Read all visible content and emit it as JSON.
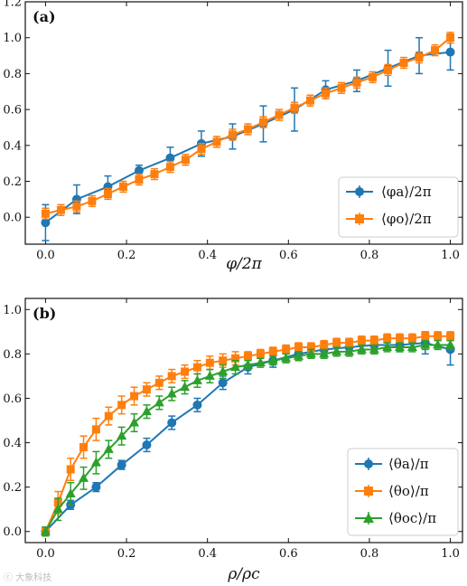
{
  "watermark": "ⓒ 大象科技",
  "chart_data": [
    {
      "type": "line",
      "panel_label": "(a)",
      "xlabel": "φ/2π",
      "ylabel": "",
      "xlim": [
        -0.05,
        1.03
      ],
      "ylim": [
        -0.15,
        1.2
      ],
      "xticks": [
        "0.0",
        "0.2",
        "0.4",
        "0.6",
        "0.8",
        "1.0"
      ],
      "yticks": [
        "0.0",
        "0.2",
        "0.4",
        "0.6",
        "0.8",
        "1.0",
        "1.2"
      ],
      "grid": false,
      "legend_position": "lower-right",
      "series": [
        {
          "name": "⟨φa⟩/2π",
          "color": "#1f77b4",
          "marker": "circle",
          "x": [
            0.0,
            0.077,
            0.154,
            0.231,
            0.308,
            0.385,
            0.462,
            0.538,
            0.615,
            0.692,
            0.769,
            0.846,
            0.923,
            1.0
          ],
          "y": [
            -0.03,
            0.1,
            0.17,
            0.26,
            0.33,
            0.41,
            0.45,
            0.52,
            0.6,
            0.71,
            0.76,
            0.83,
            0.9,
            0.92
          ],
          "err": [
            0.1,
            0.08,
            0.06,
            0.03,
            0.06,
            0.07,
            0.07,
            0.1,
            0.12,
            0.05,
            0.06,
            0.1,
            0.1,
            0.1
          ]
        },
        {
          "name": "⟨φo⟩/2π",
          "color": "#ff7f0e",
          "marker": "square",
          "x": [
            0.0,
            0.038,
            0.077,
            0.115,
            0.154,
            0.192,
            0.231,
            0.269,
            0.308,
            0.346,
            0.385,
            0.423,
            0.462,
            0.5,
            0.538,
            0.577,
            0.615,
            0.654,
            0.692,
            0.731,
            0.769,
            0.808,
            0.846,
            0.885,
            0.923,
            0.962,
            1.0
          ],
          "y": [
            0.02,
            0.04,
            0.06,
            0.09,
            0.13,
            0.17,
            0.21,
            0.24,
            0.28,
            0.32,
            0.38,
            0.42,
            0.46,
            0.49,
            0.53,
            0.57,
            0.61,
            0.65,
            0.69,
            0.72,
            0.75,
            0.78,
            0.82,
            0.86,
            0.89,
            0.93,
            1.0
          ],
          "err": [
            0.03,
            0.03,
            0.03,
            0.03,
            0.03,
            0.03,
            0.03,
            0.03,
            0.03,
            0.03,
            0.03,
            0.03,
            0.03,
            0.03,
            0.03,
            0.03,
            0.03,
            0.03,
            0.03,
            0.03,
            0.03,
            0.03,
            0.03,
            0.03,
            0.03,
            0.03,
            0.03
          ]
        }
      ]
    },
    {
      "type": "line",
      "panel_label": "(b)",
      "xlabel": "ρ/ρc",
      "ylabel": "",
      "xlim": [
        -0.05,
        1.03
      ],
      "ylim": [
        -0.05,
        1.05
      ],
      "xticks": [
        "0.0",
        "0.2",
        "0.4",
        "0.6",
        "0.8",
        "1.0"
      ],
      "yticks": [
        "0.0",
        "0.2",
        "0.4",
        "0.6",
        "0.8",
        "1.0"
      ],
      "grid": false,
      "legend_position": "lower-right",
      "series": [
        {
          "name": "⟨θa⟩/π",
          "color": "#1f77b4",
          "marker": "circle",
          "x": [
            0.0,
            0.062,
            0.125,
            0.188,
            0.25,
            0.312,
            0.375,
            0.438,
            0.5,
            0.562,
            0.625,
            0.688,
            0.75,
            0.812,
            0.875,
            0.938,
            1.0
          ],
          "y": [
            0.0,
            0.12,
            0.2,
            0.3,
            0.39,
            0.49,
            0.57,
            0.67,
            0.74,
            0.77,
            0.8,
            0.82,
            0.83,
            0.84,
            0.84,
            0.85,
            0.82
          ],
          "err": [
            0.02,
            0.02,
            0.02,
            0.02,
            0.03,
            0.03,
            0.03,
            0.03,
            0.03,
            0.03,
            0.03,
            0.03,
            0.03,
            0.03,
            0.03,
            0.05,
            0.07
          ]
        },
        {
          "name": "⟨θo⟩/π",
          "color": "#ff7f0e",
          "marker": "square",
          "x": [
            0.0,
            0.031,
            0.062,
            0.094,
            0.125,
            0.156,
            0.188,
            0.219,
            0.25,
            0.281,
            0.312,
            0.344,
            0.375,
            0.406,
            0.438,
            0.469,
            0.5,
            0.531,
            0.562,
            0.594,
            0.625,
            0.656,
            0.688,
            0.719,
            0.75,
            0.781,
            0.812,
            0.844,
            0.875,
            0.906,
            0.938,
            0.969,
            1.0
          ],
          "y": [
            0.0,
            0.13,
            0.28,
            0.38,
            0.46,
            0.52,
            0.57,
            0.61,
            0.64,
            0.67,
            0.7,
            0.72,
            0.74,
            0.76,
            0.77,
            0.78,
            0.79,
            0.8,
            0.81,
            0.82,
            0.83,
            0.83,
            0.84,
            0.85,
            0.85,
            0.86,
            0.86,
            0.87,
            0.87,
            0.87,
            0.88,
            0.88,
            0.88
          ],
          "err": [
            0.02,
            0.05,
            0.05,
            0.05,
            0.05,
            0.04,
            0.04,
            0.04,
            0.03,
            0.03,
            0.03,
            0.03,
            0.03,
            0.03,
            0.03,
            0.03,
            0.02,
            0.02,
            0.02,
            0.02,
            0.02,
            0.02,
            0.02,
            0.02,
            0.02,
            0.02,
            0.02,
            0.02,
            0.02,
            0.02,
            0.02,
            0.02,
            0.02
          ]
        },
        {
          "name": "⟨θoc⟩/π",
          "color": "#2ca02c",
          "marker": "triangle",
          "x": [
            0.0,
            0.031,
            0.062,
            0.094,
            0.125,
            0.156,
            0.188,
            0.219,
            0.25,
            0.281,
            0.312,
            0.344,
            0.375,
            0.406,
            0.438,
            0.469,
            0.5,
            0.531,
            0.562,
            0.594,
            0.625,
            0.656,
            0.688,
            0.719,
            0.75,
            0.781,
            0.812,
            0.844,
            0.875,
            0.906,
            0.938,
            0.969,
            1.0
          ],
          "y": [
            0.0,
            0.1,
            0.17,
            0.24,
            0.31,
            0.37,
            0.43,
            0.49,
            0.54,
            0.58,
            0.62,
            0.65,
            0.68,
            0.7,
            0.72,
            0.74,
            0.75,
            0.76,
            0.77,
            0.78,
            0.79,
            0.8,
            0.8,
            0.81,
            0.81,
            0.82,
            0.82,
            0.83,
            0.83,
            0.83,
            0.84,
            0.84,
            0.84
          ],
          "err": [
            0.02,
            0.05,
            0.05,
            0.05,
            0.05,
            0.04,
            0.04,
            0.04,
            0.03,
            0.03,
            0.03,
            0.03,
            0.03,
            0.03,
            0.03,
            0.03,
            0.02,
            0.02,
            0.02,
            0.02,
            0.02,
            0.02,
            0.02,
            0.02,
            0.02,
            0.02,
            0.02,
            0.02,
            0.02,
            0.02,
            0.02,
            0.02,
            0.02
          ]
        }
      ]
    }
  ]
}
